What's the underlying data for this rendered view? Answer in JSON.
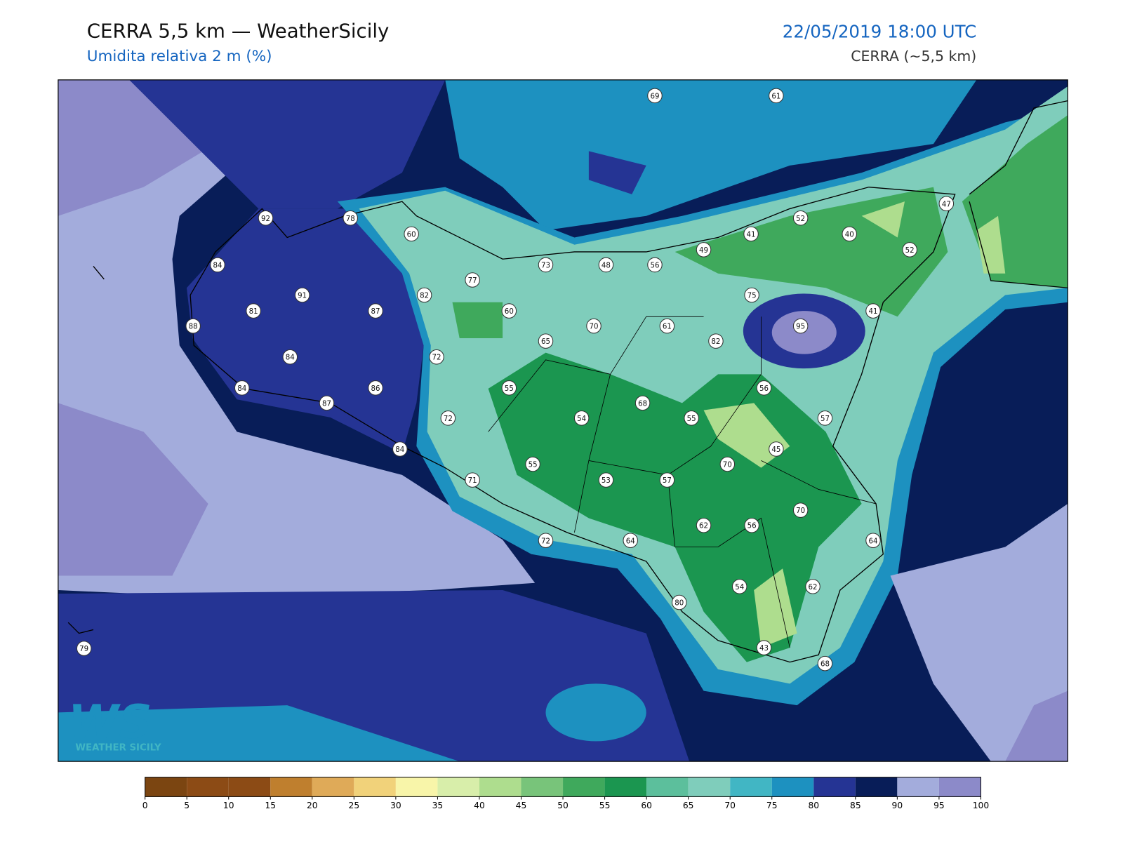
{
  "header": {
    "title": "CERRA 5,5 km — WeatherSicily",
    "subtitle": "Umidita relativa 2 m (%)",
    "datetime": "22/05/2019 18:00 UTC",
    "model": "CERRA (~5,5 km)"
  },
  "map": {
    "stations": [
      69,
      61,
      92,
      78,
      60,
      52,
      47,
      41,
      40,
      52,
      49,
      73,
      48,
      56,
      84,
      77,
      91,
      82,
      75,
      81,
      87,
      60,
      41,
      88,
      70,
      61,
      95,
      65,
      82,
      84,
      72,
      84,
      86,
      55,
      56,
      87,
      68,
      72,
      54,
      55,
      57,
      84,
      45,
      55,
      70,
      71,
      53,
      57,
      70,
      62,
      56,
      72,
      64,
      64,
      54,
      62,
      80,
      79,
      43,
      68
    ]
  },
  "logo": {
    "mark": "WS",
    "name": "WEATHER SICILY"
  },
  "colorbar": {
    "ticks": [
      0,
      5,
      10,
      15,
      20,
      25,
      30,
      35,
      40,
      45,
      50,
      55,
      60,
      65,
      70,
      75,
      80,
      85,
      90,
      95,
      100
    ],
    "colors": [
      "#7b4511",
      "#8c4b15",
      "#8c4b15",
      "#bf7f2e",
      "#dfaa58",
      "#f1d27a",
      "#f8f5a9",
      "#d8eeaa",
      "#aedd8e",
      "#78c47a",
      "#3fa95c",
      "#1b9650",
      "#5cbf9c",
      "#7fcdbb",
      "#41b6c4",
      "#1d91c0",
      "#253494",
      "#081d58",
      "#a3acdc",
      "#8c8ac9"
    ]
  }
}
